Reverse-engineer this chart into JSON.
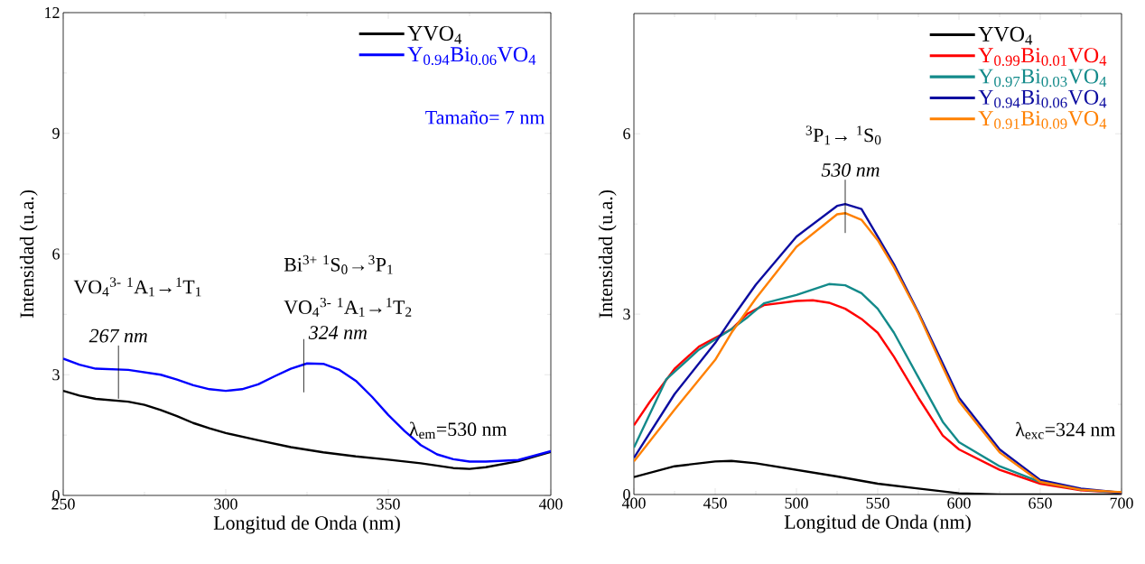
{
  "chart_data": [
    {
      "type": "line",
      "xlabel": "Longitud de Onda (nm)",
      "ylabel": "Intensidad (u.a.)",
      "xlim": [
        250,
        400
      ],
      "ylim": [
        0,
        12
      ],
      "xticks": [
        250,
        300,
        350,
        400
      ],
      "yticks": [
        0,
        3,
        6,
        9,
        12
      ],
      "legend": "top right",
      "marker": "none",
      "line_style": "solid",
      "series": [
        {
          "name": "YVO$_{4}$",
          "color": "#000000",
          "x": [
            250,
            255,
            260,
            270,
            275,
            280,
            285,
            290,
            295,
            300,
            310,
            320,
            330,
            340,
            350,
            360,
            370,
            375,
            380,
            390,
            400
          ],
          "values": [
            2.6,
            2.48,
            2.4,
            2.33,
            2.25,
            2.12,
            1.97,
            1.8,
            1.67,
            1.55,
            1.37,
            1.2,
            1.07,
            0.97,
            0.89,
            0.8,
            0.68,
            0.66,
            0.7,
            0.85,
            1.08
          ]
        },
        {
          "name": "Y$_{0.94}$Bi$_{0.06}$VO$_{4}$",
          "color": "#0000ff",
          "x": [
            250,
            255,
            260,
            270,
            280,
            285,
            290,
            295,
            300,
            305,
            310,
            315,
            320,
            325,
            330,
            335,
            340,
            345,
            350,
            355,
            360,
            365,
            370,
            375,
            380,
            390,
            400
          ],
          "values": [
            3.4,
            3.25,
            3.15,
            3.12,
            3.0,
            2.88,
            2.74,
            2.64,
            2.6,
            2.64,
            2.76,
            2.96,
            3.15,
            3.28,
            3.27,
            3.12,
            2.85,
            2.45,
            2.0,
            1.6,
            1.25,
            1.02,
            0.9,
            0.84,
            0.84,
            0.88,
            1.1
          ]
        }
      ],
      "annotations": [
        "VO$_{4}$$^{3-}$  $^{1}$A$_{1}$→$^{1}$T$_{1}$",
        {
          "text": "267 nm",
          "x": 267,
          "y": 3.12
        },
        "Bi$^{3+}$   $^{1}$S$_{0}$→$^{3}$P$_{1}$",
        "VO$_{4}$$^{3-}$  $^{1}$A$_{1}$→$^{1}$T$_{2}$",
        {
          "text": "324 nm",
          "x": 324,
          "y": 3.28
        },
        "λ$_{em}$=530 nm",
        "Tamaño= 7 nm"
      ]
    },
    {
      "type": "line",
      "xlabel": "Longitud de Onda (nm)",
      "ylabel": "Intensidad (u.a.)",
      "xlim": [
        400,
        700
      ],
      "ylim": [
        0,
        8
      ],
      "xticks": [
        400,
        450,
        500,
        550,
        600,
        650,
        700
      ],
      "yticks": [
        0,
        3,
        6
      ],
      "legend": "top right",
      "marker": "none",
      "line_style": "solid",
      "series": [
        {
          "name": "YVO$_{4}$",
          "color": "#000000",
          "x": [
            400,
            425,
            450,
            460,
            475,
            500,
            525,
            550,
            575,
            600,
            625,
            700
          ],
          "values": [
            0.29,
            0.47,
            0.55,
            0.56,
            0.52,
            0.41,
            0.3,
            0.18,
            0.1,
            0.02,
            0,
            0
          ]
        },
        {
          "name": "Y$_{0.99}$Bi$_{0.01}$VO$_{4}$",
          "color": "#ff0000",
          "x": [
            400,
            410,
            425,
            440,
            460,
            470,
            480,
            500,
            510,
            520,
            530,
            540,
            550,
            560,
            575,
            590,
            600,
            625,
            650,
            675,
            700
          ],
          "values": [
            1.15,
            1.55,
            2.09,
            2.46,
            2.75,
            3.01,
            3.15,
            3.22,
            3.23,
            3.19,
            3.09,
            2.92,
            2.69,
            2.29,
            1.61,
            0.98,
            0.75,
            0.41,
            0.18,
            0.07,
            0.03
          ]
        },
        {
          "name": "Y$_{0.97}$Bi$_{0.03}$VO$_{4}$",
          "color": "#138a8a",
          "x": [
            400,
            420,
            440,
            460,
            470,
            480,
            500,
            520,
            530,
            540,
            550,
            560,
            575,
            590,
            600,
            625,
            650,
            675,
            700
          ],
          "values": [
            0.78,
            1.92,
            2.41,
            2.75,
            2.95,
            3.18,
            3.32,
            3.5,
            3.48,
            3.35,
            3.09,
            2.69,
            1.95,
            1.21,
            0.87,
            0.47,
            0.21,
            0.08,
            0.03
          ]
        },
        {
          "name": "Y$_{0.94}$Bi$_{0.06}$VO$_{4}$",
          "color": "#0c0ca0",
          "x": [
            400,
            425,
            450,
            460,
            475,
            500,
            525,
            530,
            540,
            550,
            560,
            575,
            590,
            600,
            625,
            650,
            675,
            700
          ],
          "values": [
            0.61,
            1.67,
            2.52,
            2.92,
            3.49,
            4.29,
            4.8,
            4.83,
            4.75,
            4.29,
            3.83,
            3.03,
            2.18,
            1.61,
            0.75,
            0.24,
            0.1,
            0.03
          ]
        },
        {
          "name": "Y$_{0.91}$Bi$_{0.09}$VO$_{4}$",
          "color": "#ff8000",
          "x": [
            400,
            425,
            450,
            460,
            475,
            500,
            525,
            530,
            540,
            550,
            560,
            575,
            590,
            600,
            625,
            650,
            675,
            700
          ],
          "values": [
            0.55,
            1.41,
            2.24,
            2.69,
            3.26,
            4.12,
            4.66,
            4.68,
            4.57,
            4.23,
            3.78,
            3.01,
            2.12,
            1.55,
            0.7,
            0.21,
            0.08,
            0.04
          ]
        }
      ],
      "annotations": [
        "$^{3}$P$_{1}$→ $^{1}$S$_{0}$",
        {
          "text": "530 nm",
          "x": 530,
          "y": 4.83
        },
        "λ$_{exc}$=324 nm"
      ]
    }
  ]
}
